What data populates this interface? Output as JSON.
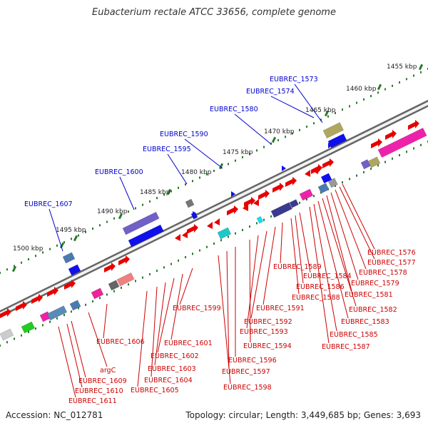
{
  "title": "Eubacterium rectale ATCC 33656, complete genome",
  "footer": {
    "accession": "Accession: NC_012781",
    "topology": "Topology: circular; Length: 3,449,685 bp; Genes: 3,693"
  },
  "colors": {
    "label_above": "#0000cc",
    "label_below": "#cc0000",
    "tick": "#2a7a2a",
    "backbone": "#888888"
  },
  "ticks": [
    "1455 kbp",
    "1460 kbp",
    "1465 kbp",
    "1470 kbp",
    "1475 kbp",
    "1480 kbp",
    "1485 kbp",
    "1490 kbp",
    "1495 kbp",
    "1500 kbp"
  ],
  "labels_above": [
    "EUBREC_1573",
    "EUBREC_1574",
    "EUBREC_1580",
    "EUBREC_1590",
    "EUBREC_1595",
    "EUBREC_1600",
    "EUBREC_1607"
  ],
  "labels_below": [
    "EUBREC_1576",
    "EUBREC_1577",
    "EUBREC_1578",
    "EUBREC_1579",
    "EUBREC_1581",
    "EUBREC_1582",
    "EUBREC_1583",
    "EUBREC_1585",
    "EUBREC_1587",
    "EUBREC_1584",
    "EUBREC_1586",
    "EUBREC_1588",
    "EUBREC_1589",
    "EUBREC_1591",
    "EUBREC_1592",
    "EUBREC_1593",
    "EUBREC_1594",
    "EUBREC_1596",
    "EUBREC_1597",
    "EUBREC_1598",
    "EUBREC_1599",
    "EUBREC_1601",
    "EUBREC_1602",
    "EUBREC_1603",
    "EUBREC_1604",
    "EUBREC_1605",
    "EUBREC_1606",
    "argC",
    "EUBREC_1609",
    "EUBREC_1610",
    "EUBREC_1611"
  ]
}
